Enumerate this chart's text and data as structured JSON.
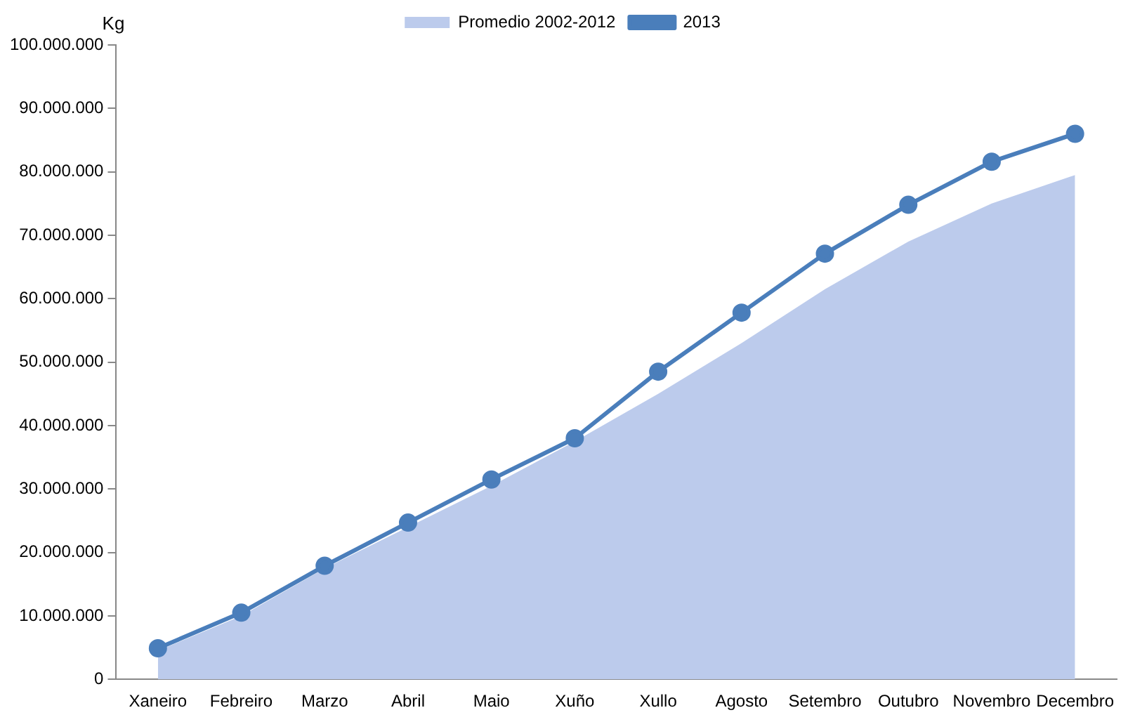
{
  "chart_data": {
    "type": "line",
    "ylabel": "Kg",
    "categories": [
      "Xaneiro",
      "Febreiro",
      "Marzo",
      "Abril",
      "Maio",
      "Xuño",
      "Xullo",
      "Agosto",
      "Setembro",
      "Outubro",
      "Novembro",
      "Decembro"
    ],
    "series": [
      {
        "name": "Promedio 2002-2012",
        "type": "area",
        "marker": "none",
        "color": "#bccbec",
        "values": [
          4500000,
          10000000,
          17500000,
          24000000,
          30500000,
          37500000,
          45000000,
          53000000,
          61500000,
          69000000,
          75000000,
          79500000
        ]
      },
      {
        "name": "2013",
        "color": "#4a7ebb",
        "values": [
          4900000,
          10500000,
          17900000,
          24700000,
          31500000,
          38000000,
          48500000,
          57800000,
          67100000,
          74800000,
          81600000,
          86000000
        ]
      }
    ],
    "marker": "circle",
    "legend": "top",
    "grid": false,
    "ylim": [
      0,
      100000000
    ],
    "yticks": [
      {
        "value": 0,
        "label": "0"
      },
      {
        "value": 10000000,
        "label": "10.000.000"
      },
      {
        "value": 20000000,
        "label": "20.000.000"
      },
      {
        "value": 30000000,
        "label": "30.000.000"
      },
      {
        "value": 40000000,
        "label": "40.000.000"
      },
      {
        "value": 50000000,
        "label": "50.000.000"
      },
      {
        "value": 60000000,
        "label": "60.000.000"
      },
      {
        "value": 70000000,
        "label": "70.000.000"
      },
      {
        "value": 80000000,
        "label": "80.000.000"
      },
      {
        "value": 90000000,
        "label": "90.000.000"
      },
      {
        "value": 100000000,
        "label": "100.000.000"
      }
    ]
  }
}
